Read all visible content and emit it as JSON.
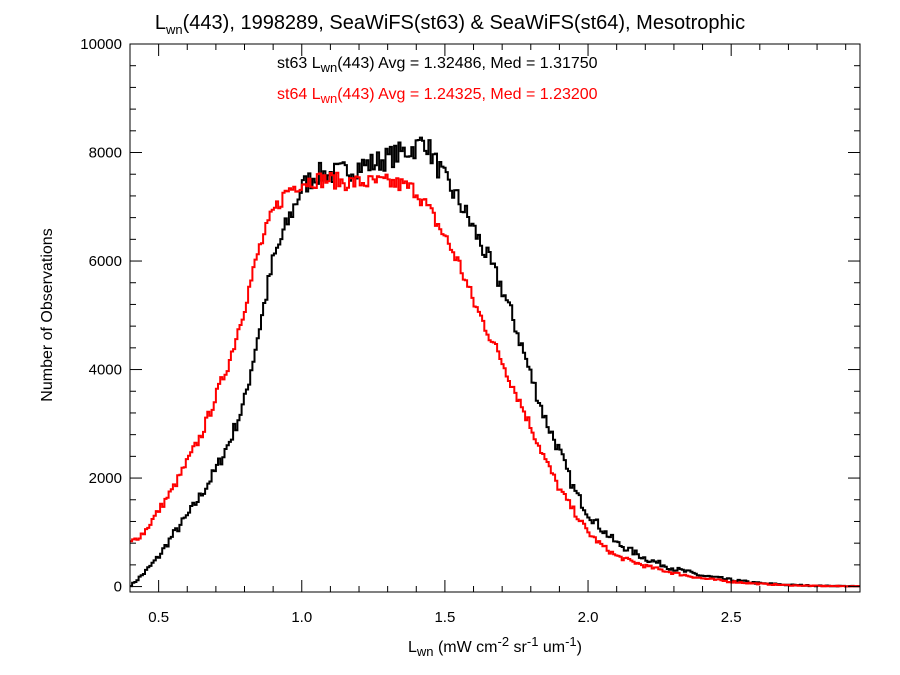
{
  "chart_data": {
    "type": "line",
    "subtype": "step-histogram",
    "title": {
      "main": "L",
      "sub": "wn",
      "rest": "(443), 1998289, SeaWiFS(st63) & SeaWiFS(st64), Mesotrophic"
    },
    "xlabel": {
      "main": "L",
      "sub": "wn",
      "p1": " (mW cm",
      "sup1": "-2",
      "p2": " sr",
      "sup2": "-1",
      "p3": " um",
      "sup3": "-1",
      "p4": ")"
    },
    "ylabel": "Number of Observations",
    "xlim": [
      0.4,
      2.95
    ],
    "ylim": [
      -100,
      10000
    ],
    "xticks": [
      0.5,
      1.0,
      1.5,
      2.0,
      2.5
    ],
    "xtick_labels": [
      "0.5",
      "1.0",
      "1.5",
      "2.0",
      "2.5"
    ],
    "yticks": [
      0,
      2000,
      4000,
      6000,
      8000,
      10000
    ],
    "ytick_labels": [
      "0",
      "2000",
      "4000",
      "6000",
      "8000",
      "10000"
    ],
    "grid": false,
    "annotations": [
      {
        "pre": "st63 L",
        "sub": "wn",
        "post": "(443) Avg = 1.32486, Med = 1.31750",
        "color": "#000000"
      },
      {
        "pre": "st64 L",
        "sub": "wn",
        "post": "(443) Avg = 1.24325, Med = 1.23200",
        "color": "#ff0000"
      }
    ],
    "series": [
      {
        "color": "#000000",
        "x": [
          0.4,
          0.45,
          0.5,
          0.55,
          0.6,
          0.65,
          0.7,
          0.75,
          0.8,
          0.85,
          0.9,
          0.95,
          1.0,
          1.05,
          1.1,
          1.15,
          1.2,
          1.25,
          1.3,
          1.35,
          1.4,
          1.43,
          1.45,
          1.5,
          1.55,
          1.6,
          1.65,
          1.7,
          1.75,
          1.8,
          1.85,
          1.9,
          1.95,
          2.0,
          2.05,
          2.1,
          2.2,
          2.3,
          2.4,
          2.5,
          2.6,
          2.7,
          2.8,
          2.95
        ],
        "y": [
          0,
          250,
          550,
          950,
          1300,
          1700,
          2150,
          2700,
          3400,
          4700,
          6000,
          6700,
          7350,
          7600,
          7600,
          7650,
          7750,
          7800,
          7900,
          8000,
          8100,
          8250,
          8000,
          7500,
          7100,
          6600,
          6050,
          5500,
          4750,
          3900,
          3100,
          2500,
          1800,
          1350,
          1050,
          800,
          520,
          330,
          200,
          120,
          60,
          30,
          15,
          5
        ]
      },
      {
        "color": "#ff0000",
        "x": [
          0.4,
          0.45,
          0.5,
          0.55,
          0.6,
          0.65,
          0.7,
          0.75,
          0.8,
          0.85,
          0.9,
          0.95,
          1.0,
          1.05,
          1.1,
          1.15,
          1.2,
          1.25,
          1.3,
          1.35,
          1.4,
          1.45,
          1.5,
          1.55,
          1.6,
          1.65,
          1.7,
          1.75,
          1.8,
          1.85,
          1.9,
          1.95,
          2.0,
          2.05,
          2.1,
          2.2,
          2.3,
          2.4,
          2.5,
          2.6,
          2.7,
          2.8,
          2.95
        ],
        "y": [
          800,
          1000,
          1400,
          1800,
          2300,
          2800,
          3500,
          4200,
          5150,
          6200,
          6900,
          7300,
          7450,
          7500,
          7500,
          7450,
          7450,
          7450,
          7450,
          7400,
          7300,
          6900,
          6450,
          5950,
          5250,
          4700,
          4150,
          3550,
          2950,
          2350,
          1800,
          1400,
          1000,
          750,
          560,
          380,
          250,
          150,
          90,
          50,
          25,
          12,
          5
        ]
      }
    ]
  }
}
